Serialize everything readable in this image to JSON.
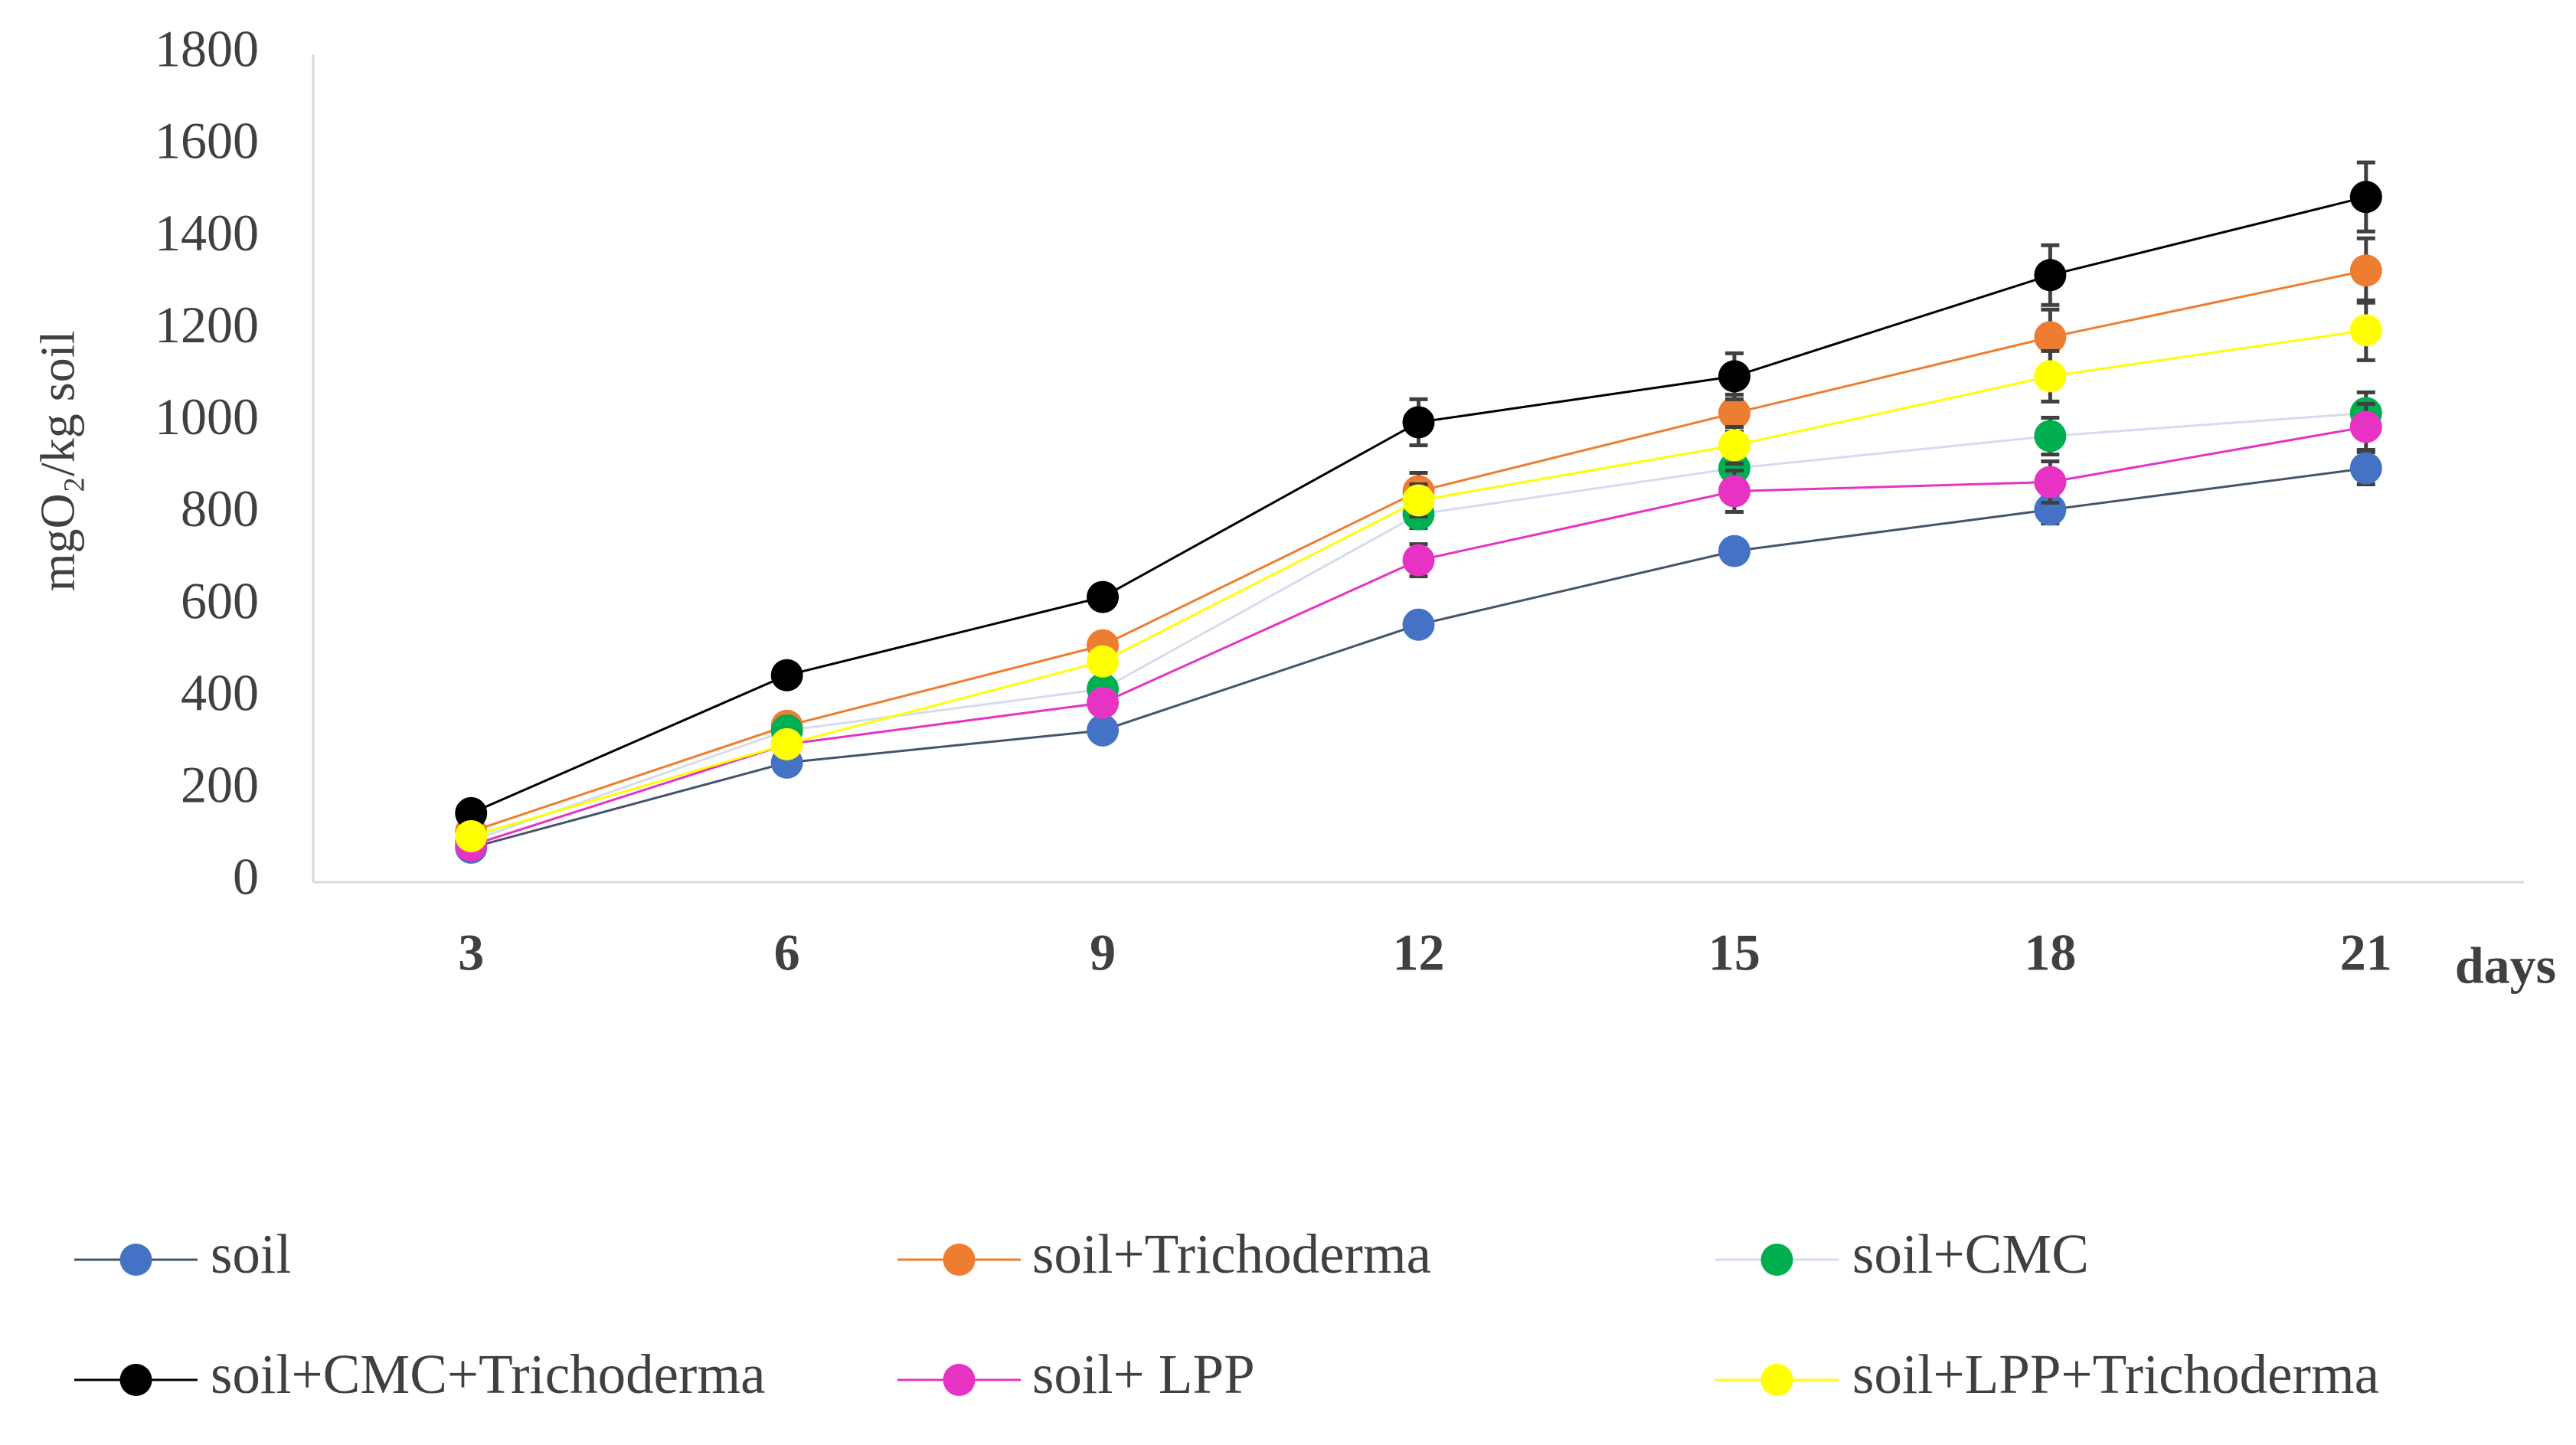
{
  "chart_data": {
    "type": "line",
    "y_label": "mgO₂/kg soil",
    "x_label": "days",
    "categories": [
      3,
      6,
      9,
      12,
      15,
      18,
      21
    ],
    "ylim": [
      0,
      1800
    ],
    "yticks": [
      0,
      200,
      400,
      600,
      800,
      1000,
      1200,
      1400,
      1600,
      1800
    ],
    "grid": false,
    "legend": "bottom",
    "error_color": "#404040",
    "series": [
      {
        "name": "soil",
        "color": "#44546a",
        "marker_color": "#4472c4",
        "values": [
          75,
          260,
          330,
          560,
          720,
          810,
          900
        ],
        "errors": [
          10,
          15,
          20,
          25,
          25,
          30,
          35
        ]
      },
      {
        "name": "soil+Trichoderma",
        "color": "#ed7d31",
        "values": [
          110,
          340,
          515,
          850,
          1020,
          1185,
          1330
        ],
        "errors": [
          10,
          20,
          25,
          40,
          40,
          60,
          70
        ]
      },
      {
        "name": "soil+CMC",
        "color": "#d6dcef",
        "marker_color": "#00b050",
        "values": [
          90,
          330,
          420,
          800,
          900,
          970,
          1020
        ],
        "errors": [
          10,
          15,
          20,
          30,
          35,
          40,
          45
        ]
      },
      {
        "name": "soil+CMC+Trichoderma",
        "color": "#000000",
        "values": [
          150,
          450,
          620,
          1000,
          1100,
          1320,
          1490
        ],
        "errors": [
          10,
          20,
          25,
          50,
          50,
          65,
          75
        ]
      },
      {
        "name": "soil+ LPP",
        "color": "#e633c4",
        "values": [
          80,
          300,
          390,
          700,
          850,
          870,
          990
        ],
        "errors": [
          10,
          15,
          20,
          35,
          45,
          45,
          50
        ]
      },
      {
        "name": "soil+LPP+Trichoderma",
        "color": "#ffff00",
        "values": [
          100,
          300,
          480,
          830,
          950,
          1100,
          1200
        ],
        "errors": [
          10,
          15,
          25,
          35,
          40,
          55,
          65
        ]
      }
    ]
  }
}
